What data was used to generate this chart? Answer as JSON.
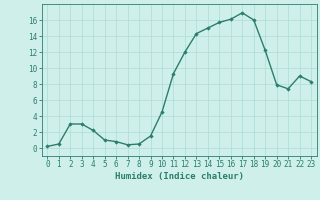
{
  "x": [
    0,
    1,
    2,
    3,
    4,
    5,
    6,
    7,
    8,
    9,
    10,
    11,
    12,
    13,
    14,
    15,
    16,
    17,
    18,
    19,
    20,
    21,
    22,
    23
  ],
  "y": [
    0.2,
    0.5,
    3.0,
    3.0,
    2.2,
    1.0,
    0.8,
    0.4,
    0.5,
    1.5,
    4.5,
    9.3,
    12.0,
    14.3,
    15.0,
    15.7,
    16.1,
    16.9,
    16.0,
    12.2,
    7.9,
    7.4,
    9.0,
    8.3
  ],
  "line_color": "#2d7d6e",
  "marker": "D",
  "marker_size": 1.8,
  "bg_color": "#cff0ea",
  "grid_color": "#aaddd6",
  "xlabel": "Humidex (Indice chaleur)",
  "xlim": [
    -0.5,
    23.5
  ],
  "ylim": [
    -1,
    18
  ],
  "yticks": [
    0,
    2,
    4,
    6,
    8,
    10,
    12,
    14,
    16
  ],
  "xticks": [
    0,
    1,
    2,
    3,
    4,
    5,
    6,
    7,
    8,
    9,
    10,
    11,
    12,
    13,
    14,
    15,
    16,
    17,
    18,
    19,
    20,
    21,
    22,
    23
  ],
  "xlabel_fontsize": 6.5,
  "tick_fontsize": 5.5,
  "line_width": 1.0
}
